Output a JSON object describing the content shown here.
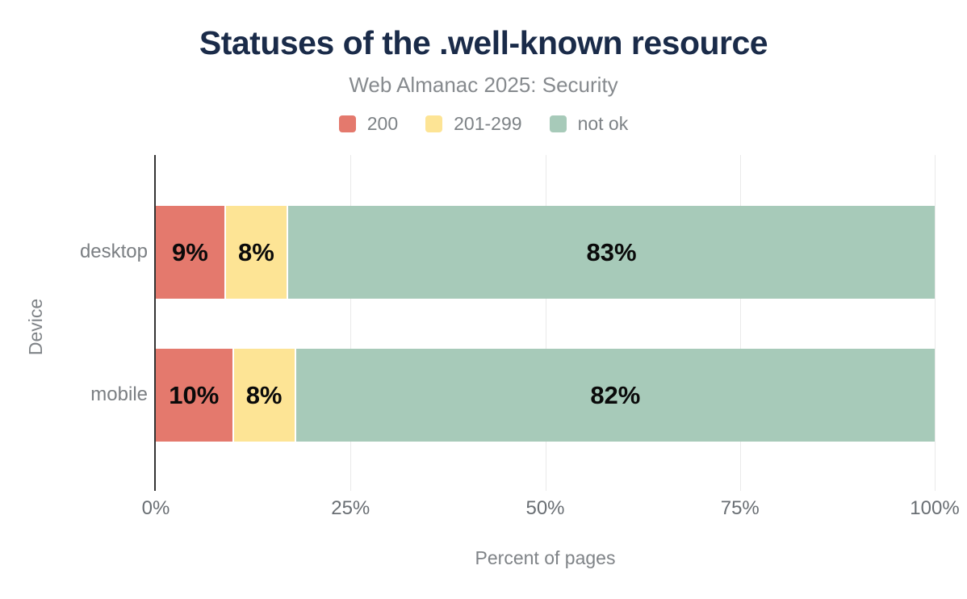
{
  "chart_data": {
    "type": "bar",
    "orientation": "horizontal",
    "stacked": true,
    "title": "Statuses of the .well-known resource",
    "subtitle": "Web Almanac 2025: Security",
    "xlabel": "Percent of pages",
    "ylabel": "Device",
    "categories": [
      "desktop",
      "mobile"
    ],
    "series": [
      {
        "name": "200",
        "color": "#e4796d",
        "values": [
          9,
          10
        ]
      },
      {
        "name": "201-299",
        "color": "#fde495",
        "values": [
          8,
          8
        ]
      },
      {
        "name": "not ok",
        "color": "#a7cab9",
        "values": [
          83,
          82
        ]
      }
    ],
    "value_label_format": "{v}%",
    "xlim": [
      0,
      100
    ],
    "x_tick_values": [
      0,
      25,
      50,
      75,
      100
    ],
    "x_ticks": [
      "0%",
      "25%",
      "50%",
      "75%",
      "100%"
    ],
    "grid": "vertical",
    "legend_position": "top"
  },
  "colors": {
    "background": "#ffffff",
    "title": "#1a2b49",
    "subtitle": "#868a8e",
    "legend_text": "#7d8286",
    "axis_tick_text": "#696e73",
    "category_text": "#7b7f83",
    "axis_title_text": "#7f8387",
    "bar_value_label": "#0a0a0a",
    "axis_line": "#343434",
    "gridline": "#e9e9e9"
  }
}
